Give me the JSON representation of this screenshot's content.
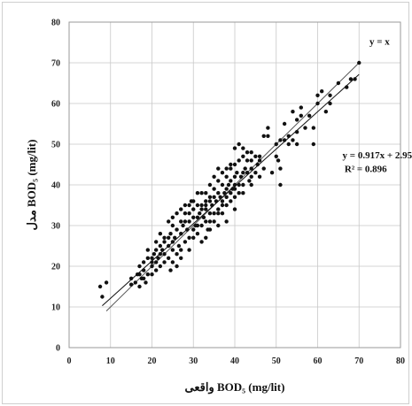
{
  "chart_data": {
    "type": "scatter",
    "xlabel": "واقعی BOD₅ (mg/lit)",
    "ylabel": "مدل BOD₅ (mg/lit)",
    "xlim": [
      0,
      80
    ],
    "ylim": [
      0,
      80
    ],
    "xticks": [
      "0",
      "10",
      "20",
      "30",
      "40",
      "50",
      "60",
      "70",
      "80"
    ],
    "yticks": [
      "0",
      "10",
      "20",
      "30",
      "40",
      "50",
      "60",
      "70",
      "80"
    ],
    "grid": true,
    "identity_label": "y = x",
    "fit_equation": "y = 0.917x + 2.954",
    "fit_r2": "R² = 0.896",
    "fit": {
      "slope": 0.917,
      "intercept": 2.954,
      "x_range": [
        8,
        70
      ]
    },
    "identity": {
      "x_range": [
        9,
        70
      ]
    },
    "points": [
      [
        7.5,
        15
      ],
      [
        8,
        12.5
      ],
      [
        9,
        16
      ],
      [
        15,
        17
      ],
      [
        15,
        15.5
      ],
      [
        16,
        16
      ],
      [
        16.5,
        18
      ],
      [
        17,
        15
      ],
      [
        17,
        20
      ],
      [
        17.5,
        17
      ],
      [
        18,
        19
      ],
      [
        18,
        21
      ],
      [
        18.5,
        16
      ],
      [
        19,
        22
      ],
      [
        19,
        18
      ],
      [
        20,
        21
      ],
      [
        20,
        20
      ],
      [
        20.5,
        23
      ],
      [
        21,
        21
      ],
      [
        21,
        19
      ],
      [
        21.5,
        22
      ],
      [
        22,
        20
      ],
      [
        22,
        25
      ],
      [
        22.5,
        24
      ],
      [
        23,
        21
      ],
      [
        23,
        27
      ],
      [
        23,
        23
      ],
      [
        24,
        25
      ],
      [
        24,
        22
      ],
      [
        24.5,
        19
      ],
      [
        24.5,
        28
      ],
      [
        25,
        26
      ],
      [
        25,
        24
      ],
      [
        25,
        30
      ],
      [
        25.5,
        27
      ],
      [
        26,
        23
      ],
      [
        26,
        29
      ],
      [
        26,
        33
      ],
      [
        26.5,
        25
      ],
      [
        27,
        31
      ],
      [
        27,
        28
      ],
      [
        27,
        24
      ],
      [
        27.5,
        30
      ],
      [
        28,
        26
      ],
      [
        28,
        33
      ],
      [
        28,
        35
      ],
      [
        28.5,
        29
      ],
      [
        29,
        31
      ],
      [
        29,
        27
      ],
      [
        29,
        24
      ],
      [
        29.5,
        36
      ],
      [
        30,
        29
      ],
      [
        30,
        32
      ],
      [
        30,
        34
      ],
      [
        30,
        27
      ],
      [
        30.5,
        30
      ],
      [
        31,
        35
      ],
      [
        31,
        32
      ],
      [
        31,
        28
      ],
      [
        31.5,
        33
      ],
      [
        32,
        30
      ],
      [
        32,
        35
      ],
      [
        32,
        38
      ],
      [
        32,
        26
      ],
      [
        32.5,
        32
      ],
      [
        33,
        31
      ],
      [
        33,
        35
      ],
      [
        33,
        36
      ],
      [
        33,
        34
      ],
      [
        33.5,
        29
      ],
      [
        34,
        37
      ],
      [
        34,
        33
      ],
      [
        34,
        36
      ],
      [
        34,
        40
      ],
      [
        34.5,
        35
      ],
      [
        35,
        33
      ],
      [
        35,
        37
      ],
      [
        35,
        31
      ],
      [
        35,
        39
      ],
      [
        35.5,
        36
      ],
      [
        36,
        34
      ],
      [
        36,
        38
      ],
      [
        36,
        41
      ],
      [
        36,
        30
      ],
      [
        36.5,
        37
      ],
      [
        37,
        36
      ],
      [
        37,
        40
      ],
      [
        37,
        33
      ],
      [
        37,
        43
      ],
      [
        37.5,
        38
      ],
      [
        38,
        35
      ],
      [
        38,
        39
      ],
      [
        38,
        42
      ],
      [
        38,
        37
      ],
      [
        38.5,
        40
      ],
      [
        39,
        36
      ],
      [
        39,
        41
      ],
      [
        39,
        44
      ],
      [
        39,
        38
      ],
      [
        39.5,
        39
      ],
      [
        40,
        37
      ],
      [
        40,
        42
      ],
      [
        40,
        45
      ],
      [
        40,
        40
      ],
      [
        40,
        34
      ],
      [
        40.5,
        43
      ],
      [
        41,
        40
      ],
      [
        41,
        46
      ],
      [
        41,
        50
      ],
      [
        41,
        38
      ],
      [
        41.5,
        42
      ],
      [
        42,
        43
      ],
      [
        42,
        47
      ],
      [
        42,
        40
      ],
      [
        42,
        49
      ],
      [
        42.5,
        44
      ],
      [
        43,
        43
      ],
      [
        43,
        46
      ],
      [
        43,
        48
      ],
      [
        43.5,
        41
      ],
      [
        44,
        46
      ],
      [
        44,
        48
      ],
      [
        44,
        44
      ],
      [
        44,
        40
      ],
      [
        45,
        43
      ],
      [
        45,
        47
      ],
      [
        45.5,
        45
      ],
      [
        46,
        42
      ],
      [
        46,
        47
      ],
      [
        47,
        44
      ],
      [
        47,
        52
      ],
      [
        48,
        52
      ],
      [
        48,
        54
      ],
      [
        49,
        43
      ],
      [
        50,
        47
      ],
      [
        50,
        50
      ],
      [
        50.5,
        46
      ],
      [
        51,
        40
      ],
      [
        51,
        44
      ],
      [
        51,
        51
      ],
      [
        52,
        51
      ],
      [
        52,
        55
      ],
      [
        53,
        50
      ],
      [
        53,
        52
      ],
      [
        54,
        58
      ],
      [
        54,
        51
      ],
      [
        55,
        56
      ],
      [
        55,
        53
      ],
      [
        55,
        50
      ],
      [
        56,
        57
      ],
      [
        56,
        59
      ],
      [
        57,
        54
      ],
      [
        58,
        57
      ],
      [
        59,
        50
      ],
      [
        59,
        54
      ],
      [
        60,
        62
      ],
      [
        60,
        60
      ],
      [
        61,
        63
      ],
      [
        62,
        58
      ],
      [
        63,
        62
      ],
      [
        63,
        60
      ],
      [
        65,
        65
      ],
      [
        67,
        64
      ],
      [
        68,
        66
      ],
      [
        69,
        66
      ],
      [
        70,
        70
      ],
      [
        19,
        24
      ],
      [
        20,
        22
      ],
      [
        21,
        24
      ],
      [
        22,
        28
      ],
      [
        23,
        26
      ],
      [
        24,
        31
      ],
      [
        25,
        21
      ],
      [
        26,
        20
      ],
      [
        27,
        22
      ],
      [
        28,
        31
      ],
      [
        29,
        33
      ],
      [
        30,
        36
      ],
      [
        31,
        30
      ],
      [
        32,
        34
      ],
      [
        33,
        38
      ],
      [
        34,
        31
      ],
      [
        35,
        42
      ],
      [
        36,
        44
      ],
      [
        37,
        35
      ],
      [
        38,
        44
      ],
      [
        39,
        45
      ],
      [
        40,
        49
      ],
      [
        31,
        38
      ],
      [
        29,
        35
      ],
      [
        27,
        34
      ],
      [
        25,
        32
      ],
      [
        24,
        27
      ],
      [
        22,
        23
      ],
      [
        21,
        26
      ],
      [
        20,
        18
      ],
      [
        18,
        17
      ],
      [
        17,
        18
      ],
      [
        36,
        33
      ],
      [
        38,
        31
      ],
      [
        40,
        39
      ],
      [
        42,
        38
      ],
      [
        44,
        42
      ],
      [
        46,
        46
      ],
      [
        33,
        27
      ],
      [
        34,
        29
      ]
    ]
  }
}
